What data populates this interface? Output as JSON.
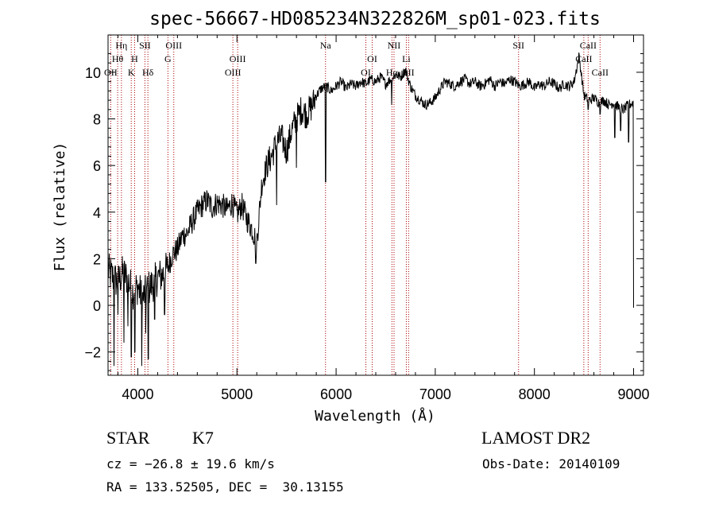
{
  "chart_data": {
    "type": "line",
    "title": "spec-56667-HD085234N322826M_sp01-023.fits",
    "xlabel": "Wavelength (Å)",
    "ylabel": "Flux (relative)",
    "xlim": [
      3700,
      9100
    ],
    "ylim": [
      -3.0,
      11.6
    ],
    "xticks": [
      4000,
      5000,
      6000,
      7000,
      8000,
      9000
    ],
    "yticks": [
      -2,
      0,
      2,
      4,
      6,
      8,
      10
    ],
    "xtick_labels": [
      "4000",
      "5000",
      "6000",
      "7000",
      "8000",
      "9000"
    ],
    "ytick_labels": [
      "−2",
      "0",
      "2",
      "4",
      "6",
      "8",
      "10"
    ],
    "grid": false,
    "line_color": "#000000",
    "marker_color": "#aa0000",
    "spectrum": {
      "x": [
        3700,
        3750,
        3800,
        3850,
        3900,
        3950,
        4000,
        4050,
        4100,
        4150,
        4200,
        4250,
        4300,
        4350,
        4400,
        4450,
        4500,
        4550,
        4600,
        4650,
        4700,
        4750,
        4800,
        4850,
        4900,
        4950,
        5000,
        5050,
        5100,
        5150,
        5200,
        5250,
        5300,
        5350,
        5400,
        5450,
        5500,
        5550,
        5600,
        5650,
        5700,
        5750,
        5800,
        5850,
        5900,
        5950,
        6000,
        6050,
        6100,
        6150,
        6200,
        6250,
        6300,
        6350,
        6400,
        6450,
        6500,
        6550,
        6600,
        6650,
        6700,
        6750,
        6800,
        6850,
        6900,
        6950,
        7000,
        7050,
        7100,
        7150,
        7200,
        7250,
        7300,
        7350,
        7400,
        7450,
        7500,
        7550,
        7600,
        7650,
        7700,
        7750,
        7800,
        7850,
        7900,
        7950,
        8000,
        8050,
        8100,
        8150,
        8200,
        8250,
        8300,
        8350,
        8400,
        8450,
        8500,
        8550,
        8600,
        8650,
        8700,
        8750,
        8800,
        8850,
        8900,
        8950,
        9000
      ],
      "y": [
        1.5,
        1.2,
        1.0,
        1.4,
        1.1,
        0.6,
        0.8,
        0.3,
        0.7,
        0.9,
        1.2,
        1.3,
        1.6,
        2.2,
        2.4,
        3.0,
        3.1,
        3.6,
        4.0,
        4.3,
        4.5,
        4.2,
        4.4,
        4.3,
        4.1,
        4.4,
        3.9,
        4.3,
        3.7,
        3.3,
        2.7,
        5.2,
        6.0,
        6.4,
        7.0,
        7.2,
        6.6,
        7.5,
        8.0,
        8.4,
        8.2,
        8.5,
        9.0,
        9.3,
        9.4,
        9.2,
        9.4,
        9.6,
        9.3,
        9.5,
        9.4,
        9.6,
        9.5,
        9.7,
        9.6,
        9.8,
        9.5,
        9.7,
        9.9,
        9.8,
        10.1,
        9.4,
        9.0,
        8.8,
        8.6,
        8.7,
        8.9,
        9.3,
        9.6,
        9.5,
        9.4,
        9.6,
        9.7,
        9.5,
        9.6,
        9.4,
        9.5,
        9.7,
        9.4,
        9.6,
        9.5,
        9.7,
        9.6,
        9.4,
        9.5,
        9.6,
        9.3,
        9.5,
        9.4,
        9.6,
        9.5,
        9.3,
        9.5,
        9.4,
        9.6,
        10.7,
        9.0,
        8.8,
        8.9,
        8.7,
        8.8,
        8.6,
        8.7,
        8.5,
        8.4,
        8.6,
        8.7
      ],
      "dips": [
        {
          "x": 3760,
          "y": -2.6
        },
        {
          "x": 3800,
          "y": -0.4
        },
        {
          "x": 3860,
          "y": -1.6
        },
        {
          "x": 3900,
          "y": -0.9
        },
        {
          "x": 3935,
          "y": -2.2
        },
        {
          "x": 3970,
          "y": -2.0
        },
        {
          "x": 4040,
          "y": -2.6
        },
        {
          "x": 4080,
          "y": -1.2
        },
        {
          "x": 4105,
          "y": -2.3
        },
        {
          "x": 4170,
          "y": -0.6
        },
        {
          "x": 4270,
          "y": -0.4
        },
        {
          "x": 5190,
          "y": 1.8
        },
        {
          "x": 5400,
          "y": 4.3
        },
        {
          "x": 5600,
          "y": 5.9
        },
        {
          "x": 5893,
          "y": 5.3
        },
        {
          "x": 6560,
          "y": 8.6
        },
        {
          "x": 8542,
          "y": 8.4
        },
        {
          "x": 8662,
          "y": 8.2
        },
        {
          "x": 8810,
          "y": 7.2
        },
        {
          "x": 8870,
          "y": 7.5
        },
        {
          "x": 8950,
          "y": 7.0
        },
        {
          "x": 9000,
          "y": -0.1
        }
      ]
    },
    "lines": [
      {
        "label": "Hη",
        "x": 3835,
        "row": 0
      },
      {
        "label": "Hθ",
        "x": 3797,
        "row": 1
      },
      {
        "label": "OII",
        "x": 3727,
        "row": 2
      },
      {
        "label": "SII",
        "x": 4072,
        "row": 0
      },
      {
        "label": "H",
        "x": 3968,
        "row": 1
      },
      {
        "label": "K",
        "x": 3934,
        "row": 2
      },
      {
        "label": "Hδ",
        "x": 4102,
        "row": 2
      },
      {
        "label": "OIII",
        "x": 4363,
        "row": 0
      },
      {
        "label": "G",
        "x": 4304,
        "row": 1
      },
      {
        "label": "OIII",
        "x": 5007,
        "row": 1
      },
      {
        "label": "OIII",
        "x": 4959,
        "row": 2
      },
      {
        "label": "Na",
        "x": 5893,
        "row": 0
      },
      {
        "label": "NII",
        "x": 6584,
        "row": 0
      },
      {
        "label": "OI",
        "x": 6364,
        "row": 1
      },
      {
        "label": "OI",
        "x": 6300,
        "row": 2
      },
      {
        "label": "Hα",
        "x": 6563,
        "row": 2
      },
      {
        "label": "Li",
        "x": 6708,
        "row": 1
      },
      {
        "label": "SII",
        "x": 6731,
        "row": 2
      },
      {
        "label": "SII",
        "x": 7840,
        "row": 0
      },
      {
        "label": "CaII",
        "x": 8542,
        "row": 0
      },
      {
        "label": "CaII",
        "x": 8498,
        "row": 1
      },
      {
        "label": "CaII",
        "x": 8662,
        "row": 2
      }
    ]
  },
  "info": {
    "class_label": "STAR",
    "subclass": "K7",
    "survey": "LAMOST DR2",
    "velocity": "cz = −26.8 ± 19.6 km/s",
    "obs_date": "Obs-Date: 20140109",
    "coords": "RA = 133.52505, DEC =  30.13155"
  }
}
